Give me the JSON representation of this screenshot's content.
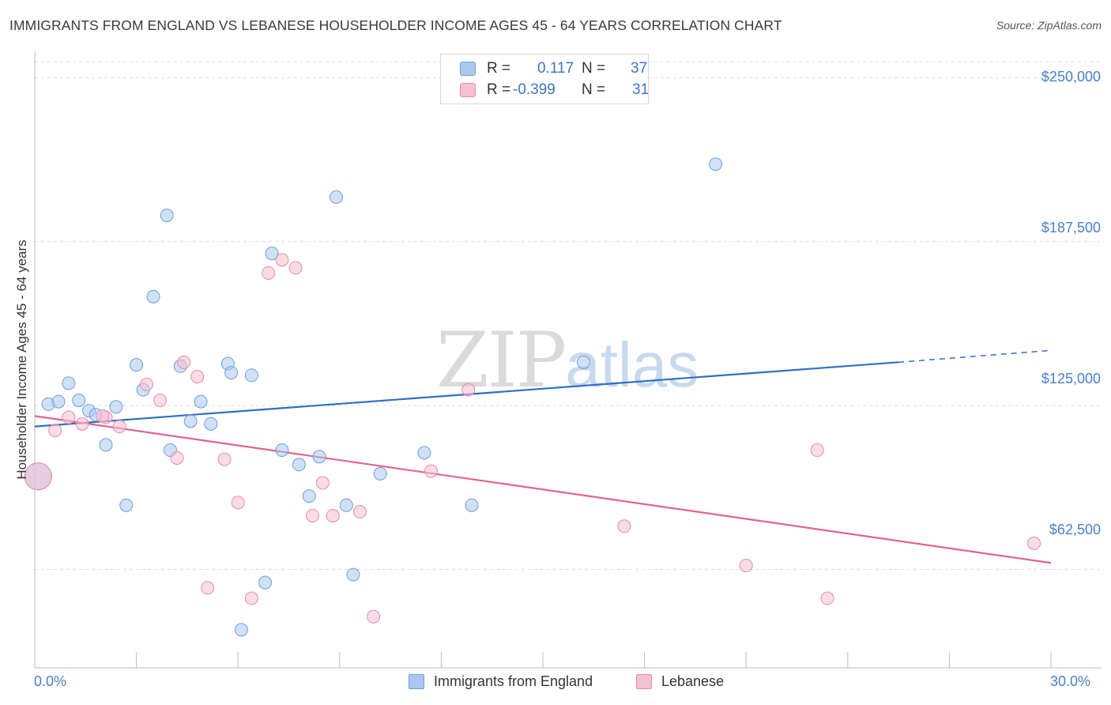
{
  "title": "IMMIGRANTS FROM ENGLAND VS LEBANESE HOUSEHOLDER INCOME AGES 45 - 64 YEARS CORRELATION CHART",
  "source": "Source: ZipAtlas.com",
  "watermark": {
    "zip": "ZIP",
    "atlas": "atlas"
  },
  "legend": {
    "r_label": "R =",
    "n_label": "N =",
    "series": [
      {
        "name": "Immigrants from England",
        "r": "0.117",
        "n": "37",
        "color": "#a9c8ef",
        "edge": "#6d9fd8",
        "line": "#2f6fc5"
      },
      {
        "name": "Lebanese",
        "r": "-0.399",
        "n": "31",
        "color": "#f6bfd1",
        "edge": "#e68aaa",
        "line": "#e2628f"
      }
    ]
  },
  "chart_data": {
    "type": "scatter",
    "title": "IMMIGRANTS FROM ENGLAND VS LEBANESE HOUSEHOLDER INCOME AGES 45 - 64 YEARS CORRELATION CHART",
    "xlabel": "",
    "ylabel": "Householder Income Ages 45 - 64 years",
    "xlim": [
      0,
      30
    ],
    "ylim": [
      25000,
      260000
    ],
    "x_tick_labels": [
      "0.0%",
      "30.0%"
    ],
    "y_ticks": [
      62500,
      125000,
      187500,
      250000
    ],
    "y_tick_labels": [
      "$62,500",
      "$125,000",
      "$187,500",
      "$250,000"
    ],
    "series": [
      {
        "name": "Immigrants from England",
        "points": [
          [
            0.4,
            125500
          ],
          [
            0.7,
            126500
          ],
          [
            1.0,
            133500
          ],
          [
            1.3,
            127000
          ],
          [
            1.6,
            123000
          ],
          [
            1.8,
            121500
          ],
          [
            2.1,
            110000
          ],
          [
            2.4,
            124500
          ],
          [
            2.7,
            87000
          ],
          [
            3.0,
            140500
          ],
          [
            3.2,
            131000
          ],
          [
            3.5,
            166500
          ],
          [
            3.9,
            197500
          ],
          [
            4.0,
            108000
          ],
          [
            4.3,
            140000
          ],
          [
            4.6,
            119000
          ],
          [
            4.9,
            126500
          ],
          [
            5.2,
            118000
          ],
          [
            5.7,
            141000
          ],
          [
            5.8,
            137500
          ],
          [
            6.1,
            39500
          ],
          [
            6.4,
            136500
          ],
          [
            6.8,
            57500
          ],
          [
            7.0,
            183000
          ],
          [
            7.3,
            108000
          ],
          [
            7.8,
            102500
          ],
          [
            8.1,
            90500
          ],
          [
            8.4,
            105500
          ],
          [
            9.2,
            87000
          ],
          [
            9.4,
            60500
          ],
          [
            10.2,
            99000
          ],
          [
            11.5,
            107000
          ],
          [
            12.9,
            87000
          ],
          [
            16.2,
            141500
          ],
          [
            20.1,
            217000
          ],
          [
            8.9,
            204500
          ],
          [
            0.1,
            98000
          ]
        ],
        "trend": {
          "x": [
            0,
            25.5
          ],
          "y": [
            117000,
            141500
          ],
          "dashed_to": [
            30,
            146000
          ]
        }
      },
      {
        "name": "Lebanese",
        "points": [
          [
            0.1,
            98000
          ],
          [
            0.6,
            115500
          ],
          [
            1.0,
            120500
          ],
          [
            1.4,
            118000
          ],
          [
            2.1,
            120500
          ],
          [
            2.5,
            117000
          ],
          [
            3.3,
            133000
          ],
          [
            3.7,
            127000
          ],
          [
            4.2,
            105000
          ],
          [
            4.4,
            141500
          ],
          [
            4.8,
            136000
          ],
          [
            5.1,
            55500
          ],
          [
            5.6,
            104500
          ],
          [
            6.0,
            88000
          ],
          [
            6.4,
            51500
          ],
          [
            6.9,
            175500
          ],
          [
            7.3,
            180500
          ],
          [
            7.7,
            177500
          ],
          [
            8.2,
            83000
          ],
          [
            8.5,
            95500
          ],
          [
            8.8,
            83000
          ],
          [
            9.6,
            84500
          ],
          [
            10.0,
            44500
          ],
          [
            11.7,
            100000
          ],
          [
            12.8,
            131000
          ],
          [
            17.4,
            79000
          ],
          [
            21.0,
            64000
          ],
          [
            23.1,
            108000
          ],
          [
            23.4,
            51500
          ],
          [
            29.5,
            72500
          ],
          [
            2.0,
            121000
          ]
        ],
        "trend": {
          "x": [
            0,
            30
          ],
          "y": [
            121000,
            65000
          ]
        }
      }
    ]
  }
}
